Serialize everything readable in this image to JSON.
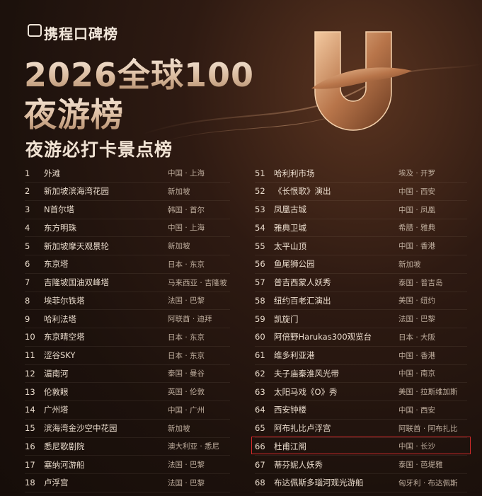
{
  "header": {
    "brand": "携程口碑榜",
    "title_line1": "2026全球100",
    "title_line2": "夜游榜",
    "subtitle": "夜游必打卡景点榜"
  },
  "table": {
    "left": [
      [
        1,
        "外滩",
        "中国 · 上海"
      ],
      [
        2,
        "新加坡滨海湾花园",
        "新加坡"
      ],
      [
        3,
        "N首尔塔",
        "韩国 · 首尔"
      ],
      [
        4,
        "东方明珠",
        "中国 · 上海"
      ],
      [
        5,
        "新加坡摩天观景轮",
        "新加坡"
      ],
      [
        6,
        "东京塔",
        "日本 · 东京"
      ],
      [
        7,
        "吉隆坡国油双峰塔",
        "马来西亚 · 吉隆坡"
      ],
      [
        8,
        "埃菲尔铁塔",
        "法国 · 巴黎"
      ],
      [
        9,
        "哈利法塔",
        "阿联酋 · 迪拜"
      ],
      [
        10,
        "东京晴空塔",
        "日本 · 东京"
      ],
      [
        11,
        "涩谷SKY",
        "日本 · 东京"
      ],
      [
        12,
        "湄南河",
        "泰国 · 曼谷"
      ],
      [
        13,
        "伦敦眼",
        "英国 · 伦敦"
      ],
      [
        14,
        "广州塔",
        "中国 · 广州"
      ],
      [
        15,
        "滨海湾金沙空中花园",
        "新加坡"
      ],
      [
        16,
        "悉尼歌剧院",
        "澳大利亚 · 悉尼"
      ],
      [
        17,
        "塞纳河游船",
        "法国 · 巴黎"
      ],
      [
        18,
        "卢浮宫",
        "法国 · 巴黎"
      ]
    ],
    "right": [
      [
        51,
        "哈利利市场",
        "埃及 · 开罗"
      ],
      [
        52,
        "《长恨歌》演出",
        "中国 · 西安"
      ],
      [
        53,
        "凤凰古城",
        "中国 · 凤凰"
      ],
      [
        54,
        "雅典卫城",
        "希腊 · 雅典"
      ],
      [
        55,
        "太平山顶",
        "中国 · 香港"
      ],
      [
        56,
        "鱼尾狮公园",
        "新加坡"
      ],
      [
        57,
        "普吉西蒙人妖秀",
        "泰国 · 普吉岛"
      ],
      [
        58,
        "纽约百老汇演出",
        "美国 · 纽约"
      ],
      [
        59,
        "凯旋门",
        "法国 · 巴黎"
      ],
      [
        60,
        "阿倍野Harukas300观览台",
        "日本 · 大阪"
      ],
      [
        61,
        "维多利亚港",
        "中国 · 香港"
      ],
      [
        62,
        "夫子庙秦淮风光带",
        "中国 · 南京"
      ],
      [
        63,
        "太阳马戏《O》秀",
        "美国 · 拉斯维加斯"
      ],
      [
        64,
        "西安钟楼",
        "中国 · 西安"
      ],
      [
        65,
        "阿布扎比卢浮宫",
        "阿联酋 · 阿布扎比"
      ],
      [
        66,
        "杜甫江阁",
        "中国 · 长沙"
      ],
      [
        67,
        "蒂芬妮人妖秀",
        "泰国 · 芭堤雅"
      ],
      [
        68,
        "布达佩斯多瑙河观光游船",
        "匈牙利 · 布达佩斯"
      ]
    ]
  }
}
